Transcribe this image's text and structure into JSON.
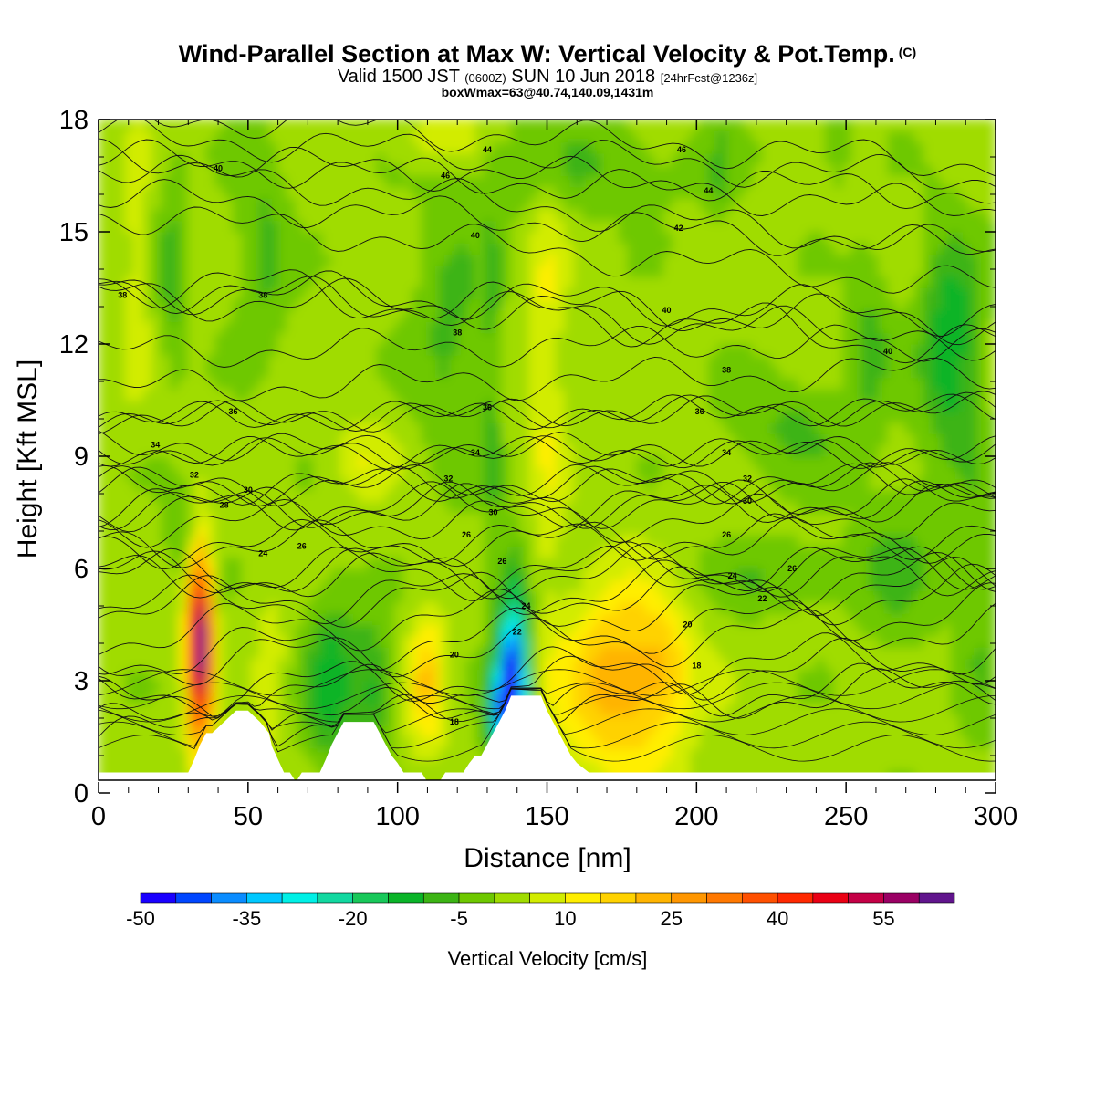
{
  "title": {
    "main": "Wind-Parallel Section at Max W: Vertical Velocity & Pot.Temp.",
    "copyright": "(C)",
    "valid_prefix": "Valid 1500 JST",
    "valid_utc": "(0600Z)",
    "valid_date": "SUN 10 Jun 2018",
    "forecast": "[24hrFcst@1236z]",
    "boxline": "boxWmax=63@40.74,140.09,1431m"
  },
  "chart_data": {
    "type": "heatmap",
    "xlabel": "Distance [nm]",
    "ylabel": "Height [Kft MSL]",
    "xlim": [
      0,
      300
    ],
    "ylim": [
      0,
      18
    ],
    "x_ticks": [
      "0",
      "50",
      "100",
      "150",
      "200",
      "250",
      "300"
    ],
    "y_ticks": [
      "0",
      "3",
      "6",
      "9",
      "12",
      "15",
      "18"
    ],
    "x_tick_values": [
      0,
      50,
      100,
      150,
      200,
      250,
      300
    ],
    "y_tick_values": [
      0,
      3,
      6,
      9,
      12,
      15,
      18
    ],
    "colorbar": {
      "title": "Vertical Velocity [cm/s]",
      "min": -50,
      "step": 5,
      "labels": [
        "-50",
        "-35",
        "-20",
        "-5",
        "10",
        "25",
        "40",
        "55"
      ],
      "label_values": [
        -50,
        -35,
        -20,
        -5,
        10,
        25,
        40,
        55
      ],
      "colors": [
        "#1a00ff",
        "#0046ff",
        "#0a8cff",
        "#00c8ff",
        "#00f0e6",
        "#12d8a0",
        "#18c85a",
        "#0ab428",
        "#3cb414",
        "#6ec800",
        "#a0dc00",
        "#d2ec00",
        "#ffee00",
        "#ffd200",
        "#ffb400",
        "#ff9600",
        "#ff7800",
        "#ff5000",
        "#ff2800",
        "#ea0014",
        "#c40046",
        "#9a0064",
        "#60148c"
      ]
    },
    "terrain_profile": {
      "x": [
        0,
        29,
        30,
        32,
        34,
        36,
        38,
        42,
        46,
        50,
        54,
        57,
        58,
        60,
        62,
        64,
        66,
        68,
        70,
        74,
        76,
        78,
        80,
        82,
        84,
        86,
        88,
        92,
        94,
        96,
        98,
        100,
        102,
        104,
        106,
        108,
        110,
        114,
        116,
        118,
        120,
        122,
        124,
        126,
        128,
        130,
        132,
        134,
        136,
        138,
        140,
        148,
        150,
        152,
        154,
        156,
        158,
        160,
        164,
        180,
        300
      ],
      "y": [
        0.55,
        0.55,
        0.55,
        0.9,
        1.3,
        1.6,
        1.6,
        1.9,
        2.2,
        2.2,
        1.9,
        1.6,
        1.25,
        0.9,
        0.55,
        0.55,
        0.3,
        0.55,
        0.55,
        0.55,
        0.9,
        1.3,
        1.6,
        1.9,
        1.9,
        1.9,
        1.9,
        1.9,
        1.6,
        1.3,
        1.0,
        0.8,
        0.55,
        0.55,
        0.55,
        0.55,
        0.3,
        0.3,
        0.55,
        0.55,
        0.55,
        0.55,
        0.8,
        1.0,
        1.0,
        1.3,
        1.6,
        1.9,
        2.2,
        2.6,
        2.6,
        2.6,
        2.2,
        1.9,
        1.6,
        1.3,
        1.0,
        0.8,
        0.55,
        0.55,
        0.55
      ]
    },
    "w_cells": [
      {
        "x": 34,
        "y": 4.0,
        "rx": 4,
        "ry": 2.6,
        "w": 63
      },
      {
        "x": 58,
        "y": 3.2,
        "rx": 5,
        "ry": 2.0,
        "w": 8
      },
      {
        "x": 78,
        "y": 3.0,
        "rx": 9,
        "ry": 2.5,
        "w": -14
      },
      {
        "x": 92,
        "y": 2.8,
        "rx": 6,
        "ry": 1.8,
        "w": -12
      },
      {
        "x": 110,
        "y": 3.0,
        "rx": 6,
        "ry": 1.8,
        "w": 18
      },
      {
        "x": 139,
        "y": 3.4,
        "rx": 5,
        "ry": 2.4,
        "w": -40
      },
      {
        "x": 136,
        "y": 2.3,
        "rx": 6,
        "ry": 1.2,
        "w": -30
      },
      {
        "x": 175,
        "y": 3.0,
        "rx": 20,
        "ry": 2.6,
        "w": 22
      },
      {
        "x": 190,
        "y": 3.3,
        "rx": 8,
        "ry": 1.5,
        "w": 8
      },
      {
        "x": 118,
        "y": 12.2,
        "rx": 12,
        "ry": 3.5,
        "w": -8
      },
      {
        "x": 55,
        "y": 14.5,
        "rx": 9,
        "ry": 2.8,
        "w": -8
      },
      {
        "x": 25,
        "y": 14.0,
        "rx": 5,
        "ry": 3.0,
        "w": -8
      },
      {
        "x": 13,
        "y": 14.0,
        "rx": 4,
        "ry": 3.2,
        "w": 8
      },
      {
        "x": 285,
        "y": 12.0,
        "rx": 10,
        "ry": 3.0,
        "w": -16
      },
      {
        "x": 258,
        "y": 12.2,
        "rx": 7,
        "ry": 2.2,
        "w": -8
      },
      {
        "x": 150,
        "y": 11.5,
        "rx": 6,
        "ry": 6.0,
        "w": 9
      },
      {
        "x": 132,
        "y": 10.5,
        "rx": 3,
        "ry": 6.5,
        "w": -7
      },
      {
        "x": 88,
        "y": 9.0,
        "rx": 10,
        "ry": 1.0,
        "w": 8
      },
      {
        "x": 230,
        "y": 5.8,
        "rx": 30,
        "ry": 1.0,
        "w": -6
      },
      {
        "x": 268,
        "y": 6.2,
        "rx": 14,
        "ry": 2.5,
        "w": -6
      },
      {
        "x": 30,
        "y": 7.0,
        "rx": 7,
        "ry": 1.3,
        "w": -9
      },
      {
        "x": 160,
        "y": 16.8,
        "rx": 40,
        "ry": 1.4,
        "w": -6
      },
      {
        "x": 115,
        "y": 17.5,
        "rx": 14,
        "ry": 0.8,
        "w": 9
      },
      {
        "x": 232,
        "y": 9.8,
        "rx": 22,
        "ry": 1.4,
        "w": -7
      },
      {
        "x": 295,
        "y": 5.0,
        "rx": 8,
        "ry": 4.0,
        "w": -6
      },
      {
        "x": 208,
        "y": 16.5,
        "rx": 4,
        "ry": 1.5,
        "w": -6
      },
      {
        "x": 247,
        "y": 17.3,
        "rx": 4,
        "ry": 1.0,
        "w": -8
      }
    ],
    "w_background": 2,
    "theta_contours": [
      {
        "label": "18",
        "label_x": 119,
        "label_y": 1.9,
        "y_left": 1.5,
        "y_right": 2.9,
        "pert": 0.4
      },
      {
        "label": "18",
        "label_x": 200,
        "label_y": 3.4,
        "y_left": 1.8,
        "y_right": 3.0,
        "pert": 0.4
      },
      {
        "label": "20",
        "label_x": 119,
        "label_y": 3.7,
        "y_left": 2.4,
        "y_right": 3.6,
        "pert": 0.5
      },
      {
        "label": "20",
        "label_x": 197,
        "label_y": 4.5,
        "y_left": 2.6,
        "y_right": 3.8,
        "pert": 0.5
      },
      {
        "label": "22",
        "label_x": 140,
        "label_y": 4.3,
        "y_left": 3.4,
        "y_right": 4.5,
        "pert": 0.5
      },
      {
        "label": "22",
        "label_x": 222,
        "label_y": 5.2,
        "y_left": 3.6,
        "y_right": 4.9,
        "pert": 0.5
      },
      {
        "label": "24",
        "label_x": 143,
        "label_y": 5.0,
        "y_left": 4.2,
        "y_right": 5.4,
        "pert": 0.5
      },
      {
        "label": "24",
        "label_x": 55,
        "label_y": 6.4,
        "y_left": 5.0,
        "y_right": 5.6,
        "pert": 0.5
      },
      {
        "label": "24",
        "label_x": 212,
        "label_y": 5.8,
        "y_left": 5.0,
        "y_right": 5.8,
        "pert": 0.5
      },
      {
        "label": "26",
        "label_x": 68,
        "label_y": 6.6,
        "y_left": 5.8,
        "y_right": 6.0,
        "pert": 0.5
      },
      {
        "label": "26",
        "label_x": 135,
        "label_y": 6.2,
        "y_left": 5.8,
        "y_right": 6.1,
        "pert": 0.5
      },
      {
        "label": "26",
        "label_x": 232,
        "label_y": 6.0,
        "y_left": 5.8,
        "y_right": 6.0,
        "pert": 0.5
      },
      {
        "label": "26",
        "label_x": 123,
        "label_y": 6.9,
        "y_left": 6.6,
        "y_right": 6.8,
        "pert": 0.4
      },
      {
        "label": "26",
        "label_x": 210,
        "label_y": 6.9,
        "y_left": 6.6,
        "y_right": 6.9,
        "pert": 0.4
      },
      {
        "label": "28",
        "label_x": 42,
        "label_y": 7.7,
        "y_left": 7.2,
        "y_right": 7.4,
        "pert": 0.4
      },
      {
        "label": "30",
        "label_x": 50,
        "label_y": 8.1,
        "y_left": 7.6,
        "y_right": 7.8,
        "pert": 0.4
      },
      {
        "label": "30",
        "label_x": 132,
        "label_y": 7.5,
        "y_left": 7.6,
        "y_right": 7.8,
        "pert": 0.4
      },
      {
        "label": "30",
        "label_x": 217,
        "label_y": 7.8,
        "y_left": 7.6,
        "y_right": 7.8,
        "pert": 0.4
      },
      {
        "label": "32",
        "label_x": 32,
        "label_y": 8.5,
        "y_left": 8.2,
        "y_right": 8.3,
        "pert": 0.3
      },
      {
        "label": "32",
        "label_x": 117,
        "label_y": 8.4,
        "y_left": 8.2,
        "y_right": 8.3,
        "pert": 0.3
      },
      {
        "label": "32",
        "label_x": 217,
        "label_y": 8.4,
        "y_left": 8.2,
        "y_right": 8.3,
        "pert": 0.3
      },
      {
        "label": "34",
        "label_x": 19,
        "label_y": 9.3,
        "y_left": 9.3,
        "y_right": 9.1,
        "pert": 0.2
      },
      {
        "label": "34",
        "label_x": 126,
        "label_y": 9.1,
        "y_left": 9.1,
        "y_right": 9.1,
        "pert": 0.2
      },
      {
        "label": "34",
        "label_x": 210,
        "label_y": 9.1,
        "y_left": 9.1,
        "y_right": 9.1,
        "pert": 0.2
      },
      {
        "label": "36",
        "label_x": 45,
        "label_y": 10.2,
        "y_left": 10.0,
        "y_right": 10.3,
        "pert": 0.2
      },
      {
        "label": "36",
        "label_x": 130,
        "label_y": 10.3,
        "y_left": 10.0,
        "y_right": 10.3,
        "pert": 0.2
      },
      {
        "label": "36",
        "label_x": 201,
        "label_y": 10.2,
        "y_left": 10.0,
        "y_right": 10.3,
        "pert": 0.2
      },
      {
        "label": "38",
        "label_x": 210,
        "label_y": 11.3,
        "y_left": 10.8,
        "y_right": 11.3,
        "pert": 0.3
      },
      {
        "label": "38",
        "label_x": 120,
        "label_y": 12.3,
        "y_left": 11.8,
        "y_right": 12.1,
        "pert": 0.3
      },
      {
        "label": "38",
        "label_x": 55,
        "label_y": 13.3,
        "y_left": 13.3,
        "y_right": 12.6,
        "pert": 0.4
      },
      {
        "label": "38",
        "label_x": 8,
        "label_y": 13.3,
        "y_left": 13.5,
        "y_right": 12.8,
        "pert": 0.4
      },
      {
        "label": "40",
        "label_x": 190,
        "label_y": 12.9,
        "y_left": 13.6,
        "y_right": 12.0,
        "pert": 0.4
      },
      {
        "label": "40",
        "label_x": 264,
        "label_y": 11.8,
        "y_left": 13.8,
        "y_right": 11.9,
        "pert": 0.5
      },
      {
        "label": "40",
        "label_x": 126,
        "label_y": 14.9,
        "y_left": 15.5,
        "y_right": 13.5,
        "pert": 0.3
      },
      {
        "label": "40",
        "label_x": 40,
        "label_y": 16.7,
        "y_left": 16.8,
        "y_right": 14.5,
        "pert": 0.3
      },
      {
        "label": "42",
        "label_x": 194,
        "label_y": 15.1,
        "y_left": 16.0,
        "y_right": 14.5,
        "pert": 0.3
      },
      {
        "label": "44",
        "label_x": 204,
        "label_y": 16.1,
        "y_left": 17.0,
        "y_right": 15.6,
        "pert": 0.3
      },
      {
        "label": "44",
        "label_x": 130,
        "label_y": 17.2,
        "y_left": 17.6,
        "y_right": 16.4,
        "pert": 0.3
      },
      {
        "label": "46",
        "label_x": 195,
        "label_y": 17.2,
        "y_left": 18.2,
        "y_right": 16.8,
        "pert": 0.3
      },
      {
        "label": "46",
        "label_x": 116,
        "label_y": 16.5,
        "y_left": 17.0,
        "y_right": 16.0,
        "pert": 0.3
      }
    ]
  }
}
